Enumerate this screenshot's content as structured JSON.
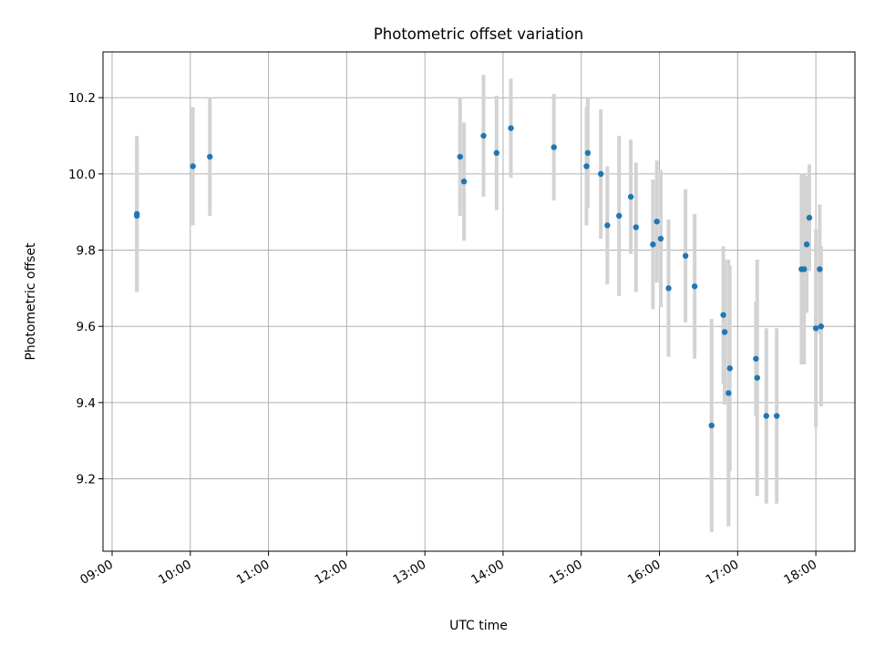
{
  "chart_data": {
    "type": "scatter",
    "title": "Photometric offset variation",
    "xlabel": "UTC time",
    "ylabel": "Photometric offset",
    "xlim": [
      "08:53",
      "18:30"
    ],
    "ylim": [
      9.01,
      10.32
    ],
    "xticks": [
      "09:00",
      "10:00",
      "11:00",
      "12:00",
      "13:00",
      "14:00",
      "15:00",
      "16:00",
      "17:00",
      "18:00"
    ],
    "yticks": [
      "9.2",
      "9.4",
      "9.6",
      "9.8",
      "10.0",
      "10.2"
    ],
    "grid": true,
    "error_bars": true,
    "series": [
      {
        "marker_color": "#1f77b4",
        "errorbar_color": "#d3d3d3",
        "points": [
          {
            "x": "09:19",
            "y": 9.89,
            "err": 0.2
          },
          {
            "x": "09:19",
            "y": 9.895,
            "err": 0.205
          },
          {
            "x": "10:02",
            "y": 10.02,
            "err": 0.155
          },
          {
            "x": "10:15",
            "y": 10.045,
            "err": 0.155
          },
          {
            "x": "13:27",
            "y": 10.045,
            "err": 0.155
          },
          {
            "x": "13:30",
            "y": 9.98,
            "err": 0.155
          },
          {
            "x": "13:45",
            "y": 10.1,
            "err": 0.16
          },
          {
            "x": "13:55",
            "y": 10.055,
            "err": 0.15
          },
          {
            "x": "14:06",
            "y": 10.12,
            "err": 0.13
          },
          {
            "x": "14:39",
            "y": 10.07,
            "err": 0.14
          },
          {
            "x": "15:04",
            "y": 10.02,
            "err": 0.155
          },
          {
            "x": "15:05",
            "y": 10.055,
            "err": 0.145
          },
          {
            "x": "15:15",
            "y": 10.0,
            "err": 0.17
          },
          {
            "x": "15:20",
            "y": 9.865,
            "err": 0.155
          },
          {
            "x": "15:29",
            "y": 9.89,
            "err": 0.21
          },
          {
            "x": "15:38",
            "y": 9.94,
            "err": 0.15
          },
          {
            "x": "15:42",
            "y": 9.86,
            "err": 0.17
          },
          {
            "x": "15:55",
            "y": 9.815,
            "err": 0.17
          },
          {
            "x": "15:58",
            "y": 9.875,
            "err": 0.16
          },
          {
            "x": "16:01",
            "y": 9.83,
            "err": 0.18
          },
          {
            "x": "16:07",
            "y": 9.7,
            "err": 0.18
          },
          {
            "x": "16:20",
            "y": 9.785,
            "err": 0.175
          },
          {
            "x": "16:27",
            "y": 9.705,
            "err": 0.19
          },
          {
            "x": "16:40",
            "y": 9.34,
            "err": 0.28
          },
          {
            "x": "16:49",
            "y": 9.63,
            "err": 0.18
          },
          {
            "x": "16:50",
            "y": 9.585,
            "err": 0.19
          },
          {
            "x": "16:53",
            "y": 9.425,
            "err": 0.35
          },
          {
            "x": "16:54",
            "y": 9.49,
            "err": 0.27
          },
          {
            "x": "17:14",
            "y": 9.515,
            "err": 0.15
          },
          {
            "x": "17:15",
            "y": 9.465,
            "err": 0.31
          },
          {
            "x": "17:22",
            "y": 9.365,
            "err": 0.23
          },
          {
            "x": "17:30",
            "y": 9.365,
            "err": 0.23
          },
          {
            "x": "17:49",
            "y": 9.75,
            "err": 0.25
          },
          {
            "x": "17:51",
            "y": 9.75,
            "err": 0.25
          },
          {
            "x": "17:53",
            "y": 9.815,
            "err": 0.18
          },
          {
            "x": "17:55",
            "y": 9.885,
            "err": 0.14
          },
          {
            "x": "18:00",
            "y": 9.595,
            "err": 0.26
          },
          {
            "x": "18:03",
            "y": 9.75,
            "err": 0.17
          },
          {
            "x": "18:04",
            "y": 9.6,
            "err": 0.21
          }
        ]
      }
    ]
  }
}
